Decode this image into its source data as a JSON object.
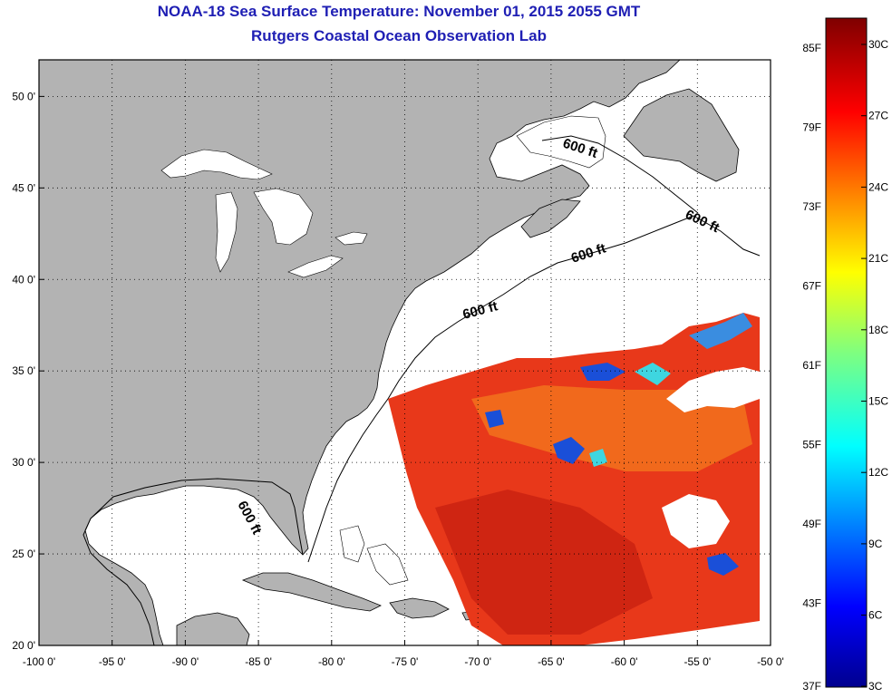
{
  "title": "NOAA-18 Sea Surface Temperature:  November 01, 2015 2055 GMT",
  "subtitle": "Rutgers Coastal Ocean Observation Lab",
  "map": {
    "lon_range": [
      -100,
      -50
    ],
    "lat_range": [
      20,
      52
    ],
    "x_ticks": [
      "-100 0'",
      "-95 0'",
      "-90 0'",
      "-85 0'",
      "-80 0'",
      "-75 0'",
      "-70 0'",
      "-65 0'",
      "-60 0'",
      "-55 0'",
      "-50 0'"
    ],
    "y_ticks": [
      "20 0'",
      "25 0'",
      "30 0'",
      "35 0'",
      "40 0'",
      "45 0'",
      "50 0'"
    ],
    "contour_label": "600 ft",
    "colors": {
      "land": "#b3b3b3",
      "ocean_no_data": "#ffffff",
      "warm_water": "#e8381a",
      "frame": "#000000"
    }
  },
  "colorbar": {
    "fahrenheit_labels": [
      "85F",
      "79F",
      "73F",
      "67F",
      "61F",
      "55F",
      "49F",
      "43F",
      "37F"
    ],
    "celsius_labels": [
      "30C",
      "27C",
      "24C",
      "21C",
      "18C",
      "15C",
      "12C",
      "9C",
      "6C",
      "3C"
    ],
    "colormap": "jet"
  }
}
